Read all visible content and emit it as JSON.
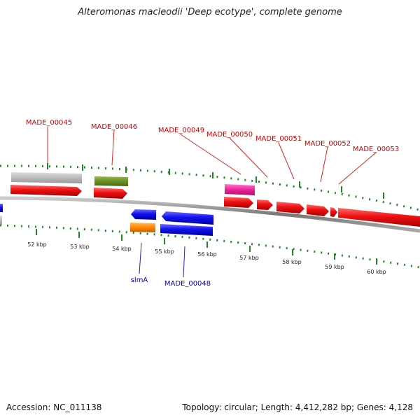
{
  "title": "Alteromonas macleodii 'Deep ecotype', complete genome",
  "accession_label": "Accession: NC_011138",
  "stats_label": "Topology: circular; Length: 4,412,282 bp; Genes: 4,128",
  "colors": {
    "cds": "#ee1111",
    "cds_reverse": "#1111ee",
    "backbone": "#888888",
    "tick": "#228822",
    "label_forward": "#cc0000",
    "label_reverse": "#0000bb",
    "feature_grey": "#bbbbbb",
    "feature_olive": "#6b8e23",
    "feature_pink": "#ee2299",
    "feature_orange": "#ff8800"
  },
  "axis": {
    "unit": "kbp",
    "tick_labels": [
      "52 kbp",
      "53 kbp",
      "54 kbp",
      "55 kbp",
      "56 kbp",
      "57 kbp",
      "58 kbp",
      "59 kbp",
      "60 kbp"
    ]
  },
  "forward_labels": [
    "MADE_00045",
    "MADE_00046",
    "MADE_00049",
    "MADE_00050",
    "MADE_00051",
    "MADE_00052",
    "MADE_00053"
  ],
  "reverse_labels": [
    "slmA",
    "MADE_00048"
  ]
}
